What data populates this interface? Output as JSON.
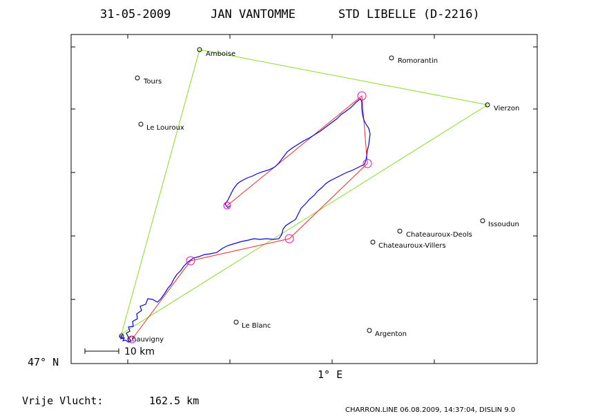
{
  "header": {
    "date": "31-05-2009",
    "pilot": "JAN VANTOMME",
    "glider": "STD LIBELLE (D-2216)"
  },
  "axes": {
    "lat_label": "47° N",
    "lon_label": "1° E"
  },
  "scale_bar": {
    "label": "10 km"
  },
  "towns": [
    {
      "id": "amboise",
      "name": "Amboise"
    },
    {
      "id": "romorantin",
      "name": "Romorantin"
    },
    {
      "id": "tours",
      "name": "Tours"
    },
    {
      "id": "vierzon",
      "name": "Vierzon"
    },
    {
      "id": "le-louroux",
      "name": "Le Louroux"
    },
    {
      "id": "issoudun",
      "name": "Issoudun"
    },
    {
      "id": "chateauroux-deols",
      "name": "Chateauroux-Deols"
    },
    {
      "id": "chateauroux-villers",
      "name": "Chateauroux-Villers"
    },
    {
      "id": "le-blanc",
      "name": "Le Blanc"
    },
    {
      "id": "argenton",
      "name": "Argenton"
    },
    {
      "id": "chauvigny",
      "name": "Chauvigny"
    }
  ],
  "task": {
    "turnpoints": [
      "Chauvigny",
      "Amboise",
      "Vierzon"
    ],
    "color": "#88dd22"
  },
  "flight": {
    "track_color": "#0000ee",
    "legs_color": "#ff2222",
    "turnpoint_marker_color": "#ff00cc"
  },
  "summary": {
    "label": "Vrije Vlucht:",
    "distance": "162.5 km"
  },
  "footer": "CHARRON.LINE 06.08.2009, 14:37:04, DISLIN 9.0"
}
